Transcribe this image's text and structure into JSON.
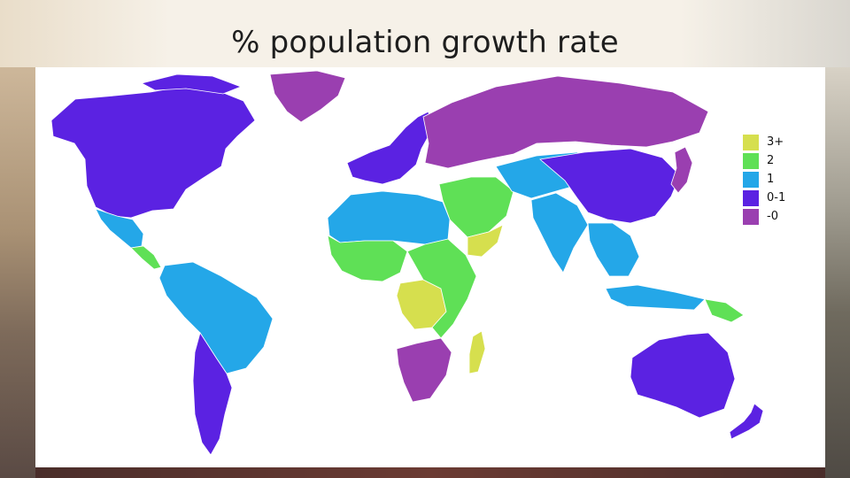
{
  "slide": {
    "title": "% population growth rate"
  },
  "legend": {
    "items": [
      {
        "label": "3+",
        "color": "#d6df4e"
      },
      {
        "label": "2",
        "color": "#5fe056"
      },
      {
        "label": "1",
        "color": "#24a7e8"
      },
      {
        "label": "0-1",
        "color": "#5b22e2"
      },
      {
        "label": "-0",
        "color": "#9a3fb0"
      }
    ]
  },
  "regions": [
    {
      "name": "north-america",
      "category": "0-1"
    },
    {
      "name": "greenland",
      "category": "-0"
    },
    {
      "name": "mexico",
      "category": "1"
    },
    {
      "name": "central-america",
      "category": "2"
    },
    {
      "name": "south-america",
      "category": "1"
    },
    {
      "name": "argentina",
      "category": "0-1"
    },
    {
      "name": "western-europe",
      "category": "0-1"
    },
    {
      "name": "eastern-europe-russia",
      "category": "-0"
    },
    {
      "name": "north-africa",
      "category": "1"
    },
    {
      "name": "west-africa",
      "category": "2"
    },
    {
      "name": "central-africa",
      "category": "3+"
    },
    {
      "name": "east-africa",
      "category": "2"
    },
    {
      "name": "southern-africa",
      "category": "-0"
    },
    {
      "name": "madagascar",
      "category": "3+"
    },
    {
      "name": "middle-east",
      "category": "2"
    },
    {
      "name": "arabian-south",
      "category": "3+"
    },
    {
      "name": "central-asia",
      "category": "1"
    },
    {
      "name": "india",
      "category": "1"
    },
    {
      "name": "china",
      "category": "0-1"
    },
    {
      "name": "southeast-asia",
      "category": "1"
    },
    {
      "name": "japan",
      "category": "-0"
    },
    {
      "name": "australia",
      "category": "0-1"
    },
    {
      "name": "new-zealand",
      "category": "0-1"
    },
    {
      "name": "papua",
      "category": "2"
    }
  ]
}
